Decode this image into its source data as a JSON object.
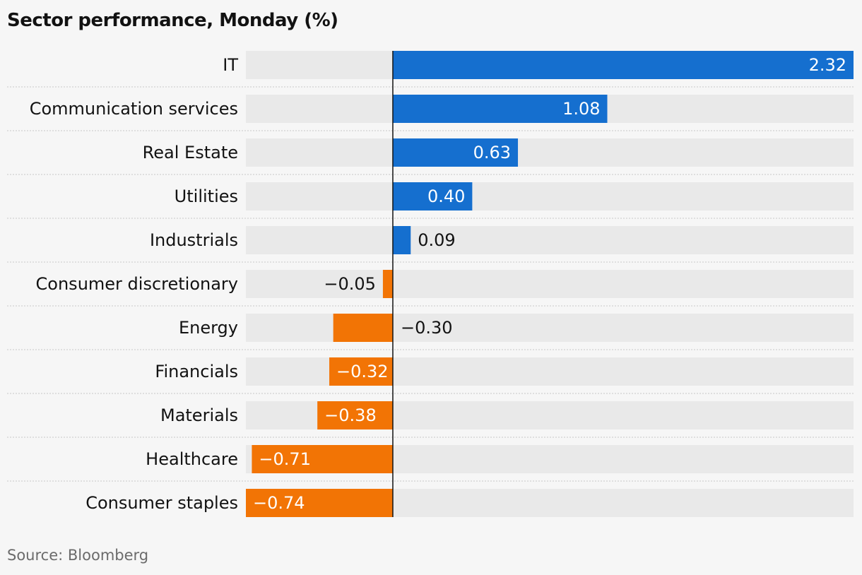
{
  "title": "Sector performance, Monday (%)",
  "source": "Source: Bloomberg",
  "colors": {
    "positive": "#156fcf",
    "negative": "#f27405",
    "track": "#e9e9e9",
    "separator": "#c8c8c8",
    "axis": "#121212",
    "label_dark": "#121212",
    "label_light": "#ffffff"
  },
  "chart_data": {
    "type": "bar",
    "orientation": "horizontal",
    "title": "Sector performance, Monday (%)",
    "xlabel": "",
    "ylabel": "",
    "xlim": [
      -0.74,
      2.32
    ],
    "grid": false,
    "legend": "none",
    "categories": [
      "IT",
      "Communication services",
      "Real Estate",
      "Utilities",
      "Industrials",
      "Consumer discretionary",
      "Energy",
      "Financials",
      "Materials",
      "Healthcare",
      "Consumer staples"
    ],
    "values": [
      2.32,
      1.08,
      0.63,
      0.4,
      0.09,
      -0.05,
      -0.3,
      -0.32,
      -0.38,
      -0.71,
      -0.74
    ],
    "value_labels": [
      "2.32",
      "1.08",
      "0.63",
      "0.40",
      "0.09",
      "−0.05",
      "−0.30",
      "−0.32",
      "−0.38",
      "−0.71",
      "−0.74"
    ]
  }
}
